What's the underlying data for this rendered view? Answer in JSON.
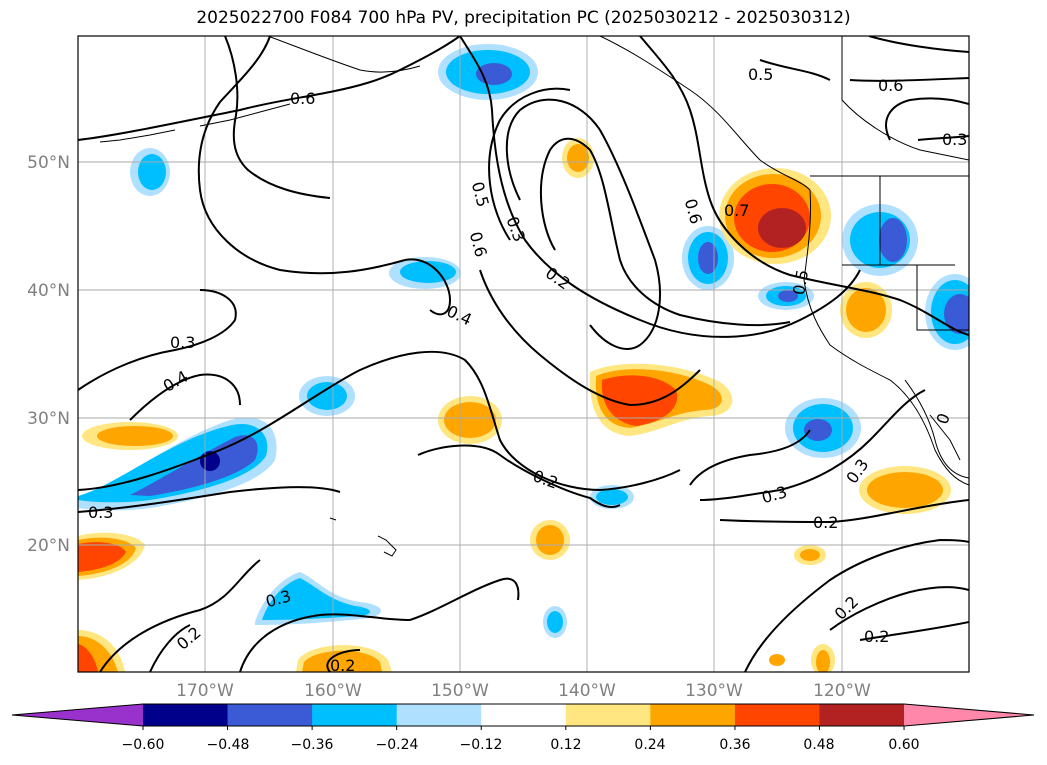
{
  "title": "2025022700 F084 700 hPa PV, precipitation PC (2025030212 - 2025030312)",
  "map": {
    "lat_labels": [
      "50°N",
      "40°N",
      "30°N",
      "20°N"
    ],
    "lon_labels": [
      "170°W",
      "160°W",
      "150°W",
      "140°W",
      "130°W",
      "120°W"
    ],
    "label_color": "#808080",
    "contour_labels": [
      "0.6",
      "0.5",
      "0.6",
      "0.3",
      "0.5",
      "0.6",
      "0.3",
      "0.2",
      "0.6",
      "0.7",
      "0.5",
      "0.4",
      "0.3",
      "0.4",
      "0.3",
      "0.2",
      "0.3",
      "0.2",
      "0.3",
      "0.2",
      "0.2",
      "0.2",
      "0.2",
      "0.3",
      "0"
    ]
  },
  "colorbar": {
    "ticks": [
      "−0.60",
      "−0.48",
      "−0.36",
      "−0.24",
      "−0.12",
      "0.12",
      "0.24",
      "0.36",
      "0.48",
      "0.60"
    ],
    "colors": [
      "#9932cc",
      "#00008b",
      "#3b5bd6",
      "#00bfff",
      "#b0e0ff",
      "#ffffff",
      "#ffe680",
      "#ffa500",
      "#ff4500",
      "#b22222",
      "#ff88aa"
    ]
  }
}
